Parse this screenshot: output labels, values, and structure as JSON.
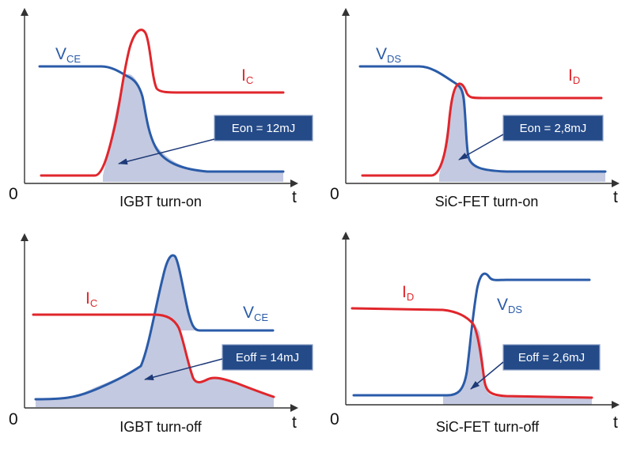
{
  "colors": {
    "voltage": "#2a5ba8",
    "current": "#e0262c",
    "energy_fill": "#b4bcd8",
    "energy_box": "#244a88",
    "energy_box_border": "#8fa4c8"
  },
  "axes": {
    "origin_label": "0",
    "time_label": "t"
  },
  "panels": [
    {
      "caption": "IGBT turn-on",
      "voltage": {
        "main": "V",
        "sub": "CE"
      },
      "current": {
        "main": "I",
        "sub": "C"
      },
      "energy": "Eon = 12mJ"
    },
    {
      "caption": "SiC-FET turn-on",
      "voltage": {
        "main": "V",
        "sub": "DS"
      },
      "current": {
        "main": "I",
        "sub": "D"
      },
      "energy": "Eon = 2,8mJ"
    },
    {
      "caption": "IGBT turn-off",
      "voltage": {
        "main": "V",
        "sub": "CE"
      },
      "current": {
        "main": "I",
        "sub": "C"
      },
      "energy": "Eoff = 14mJ"
    },
    {
      "caption": "SiC-FET turn-off",
      "voltage": {
        "main": "V",
        "sub": "DS"
      },
      "current": {
        "main": "I",
        "sub": "D"
      },
      "energy": "Eoff = 2,6mJ"
    }
  ]
}
